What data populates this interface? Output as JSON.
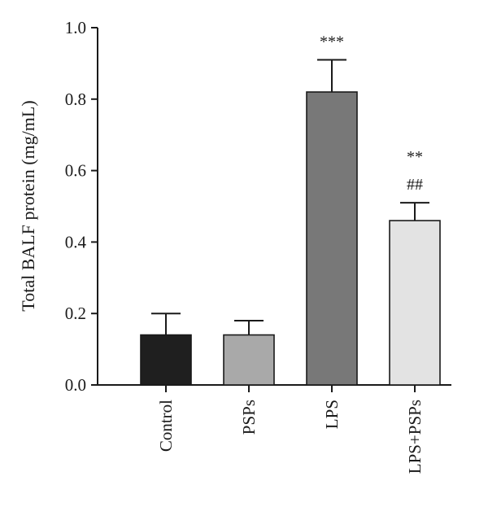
{
  "chart_data": {
    "type": "bar",
    "title": "",
    "xlabel": "",
    "ylabel": "Total BALF protein (mg/mL)",
    "ylim": [
      0,
      1.0
    ],
    "yticks": [
      0.0,
      0.2,
      0.4,
      0.6,
      0.8,
      1.0
    ],
    "ytick_labels": [
      "0.0",
      "0.2",
      "0.4",
      "0.6",
      "0.8",
      "1.0"
    ],
    "grid": false,
    "categories": [
      "Control",
      "PSPs",
      "LPS",
      "LPS+PSPs"
    ],
    "series": [
      {
        "values": [
          0.14,
          0.14,
          0.82,
          0.46
        ],
        "errors": [
          0.06,
          0.04,
          0.09,
          0.05
        ],
        "colors": [
          "#1f1f1f",
          "#a9a9a9",
          "#787878",
          "#e3e3e3"
        ]
      }
    ],
    "annotations": [
      {
        "category": "LPS",
        "lines": [
          "***"
        ]
      },
      {
        "category": "LPS+PSPs",
        "lines": [
          "**",
          "##"
        ]
      }
    ]
  }
}
